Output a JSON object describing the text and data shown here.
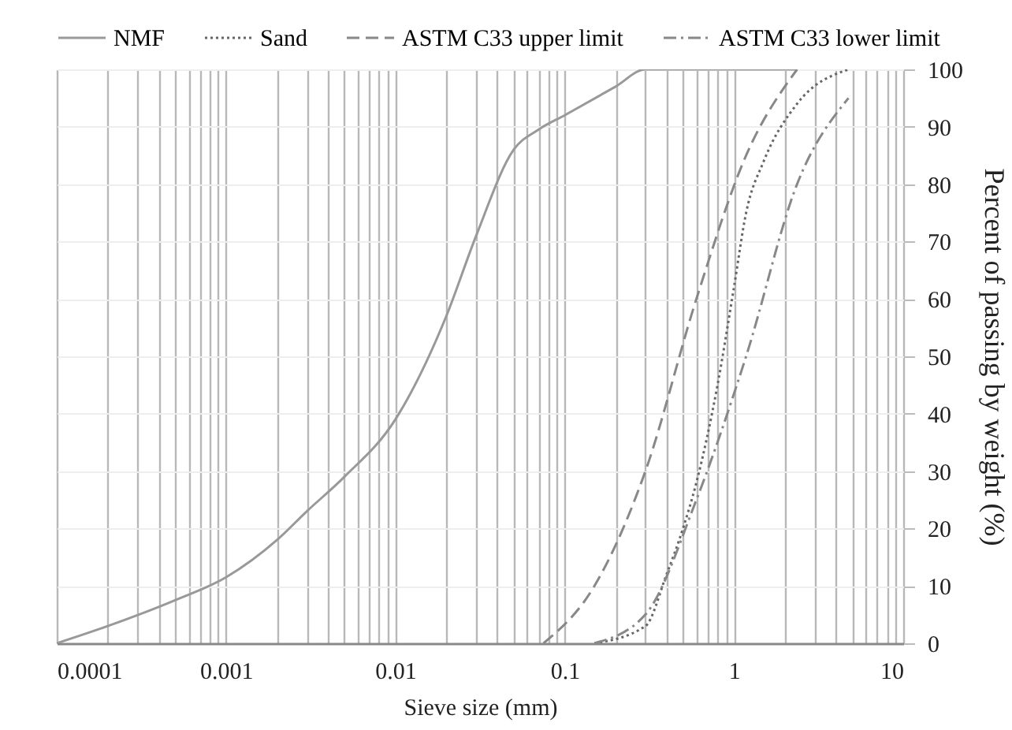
{
  "chart_data": {
    "type": "line",
    "xlabel": "Sieve size (mm)",
    "ylabel": "Percent of passing by weight (%)",
    "log": "x",
    "grid": true,
    "legend": "top",
    "xlim": [
      0.0001,
      10
    ],
    "ylim": [
      0,
      100
    ],
    "xticks": [
      0.0001,
      {
        "value": 0.0002,
        "label": null
      },
      {
        "value": 0.0003,
        "label": null
      },
      {
        "value": 0.0004,
        "label": null
      },
      {
        "value": 0.0005,
        "label": null
      },
      {
        "value": 0.0006,
        "label": null
      },
      {
        "value": 0.0007,
        "label": null
      },
      {
        "value": 0.0008,
        "label": null
      },
      {
        "value": 0.0009,
        "label": null
      },
      0.001,
      {
        "value": 0.002,
        "label": null
      },
      {
        "value": 0.003,
        "label": null
      },
      {
        "value": 0.004,
        "label": null
      },
      {
        "value": 0.005,
        "label": null
      },
      {
        "value": 0.006,
        "label": null
      },
      {
        "value": 0.007,
        "label": null
      },
      {
        "value": 0.008,
        "label": null
      },
      {
        "value": 0.009,
        "label": null
      },
      0.01,
      {
        "value": 0.02,
        "label": null
      },
      {
        "value": 0.03,
        "label": null
      },
      {
        "value": 0.04,
        "label": null
      },
      {
        "value": 0.05,
        "label": null
      },
      {
        "value": 0.06,
        "label": null
      },
      {
        "value": 0.07,
        "label": null
      },
      {
        "value": 0.08,
        "label": null
      },
      {
        "value": 0.09,
        "label": null
      },
      0.1,
      {
        "value": 0.2,
        "label": null
      },
      {
        "value": 0.3,
        "label": null
      },
      {
        "value": 0.4,
        "label": null
      },
      {
        "value": 0.5,
        "label": null
      },
      {
        "value": 0.6,
        "label": null
      },
      {
        "value": 0.7,
        "label": null
      },
      {
        "value": 0.8,
        "label": null
      },
      {
        "value": 0.9,
        "label": null
      },
      1,
      {
        "value": 2,
        "label": null
      },
      {
        "value": 3,
        "label": null
      },
      {
        "value": 4,
        "label": null
      },
      {
        "value": 5,
        "label": null
      },
      {
        "value": 6,
        "label": null
      },
      {
        "value": 7,
        "label": null
      },
      {
        "value": 8,
        "label": null
      },
      {
        "value": 9,
        "label": null
      },
      10
    ],
    "yticks": [
      0,
      10,
      20,
      30,
      40,
      50,
      60,
      70,
      80,
      90,
      100
    ],
    "series": [
      {
        "name": "NMF",
        "color": "#999999",
        "line_style": "solid",
        "x": [
          0.0001,
          0.0002,
          0.0005,
          0.001,
          0.002,
          0.003,
          0.005,
          0.01,
          0.02,
          0.03,
          0.05,
          0.07,
          0.1,
          0.2,
          0.3,
          2.36
        ],
        "values": [
          0,
          3,
          7.5,
          11.5,
          18,
          23,
          29,
          39,
          57,
          71,
          86,
          89.5,
          92,
          97,
          100,
          100
        ]
      },
      {
        "name": "Sand",
        "color": "#666666",
        "line_style": "dotted",
        "x": [
          0.15,
          0.3,
          0.4,
          0.5,
          0.6,
          0.8,
          1,
          1.18,
          1.5,
          2.36,
          4.75
        ],
        "values": [
          0,
          3,
          12,
          20,
          28,
          45,
          62,
          75,
          84,
          94,
          100
        ]
      },
      {
        "name": "ASTM C33 upper limit",
        "color": "#888888",
        "line_style": "dashed",
        "x": [
          0.075,
          0.15,
          0.3,
          0.6,
          1.18,
          2.36
        ],
        "values": [
          0,
          10,
          30,
          60,
          85,
          100
        ]
      },
      {
        "name": "ASTM C33 lower limit",
        "color": "#888888",
        "line_style": "dashdot",
        "x": [
          0.15,
          0.3,
          0.6,
          1.18,
          2.36,
          4.75
        ],
        "values": [
          0,
          5,
          25,
          50,
          80,
          95
        ]
      }
    ]
  }
}
